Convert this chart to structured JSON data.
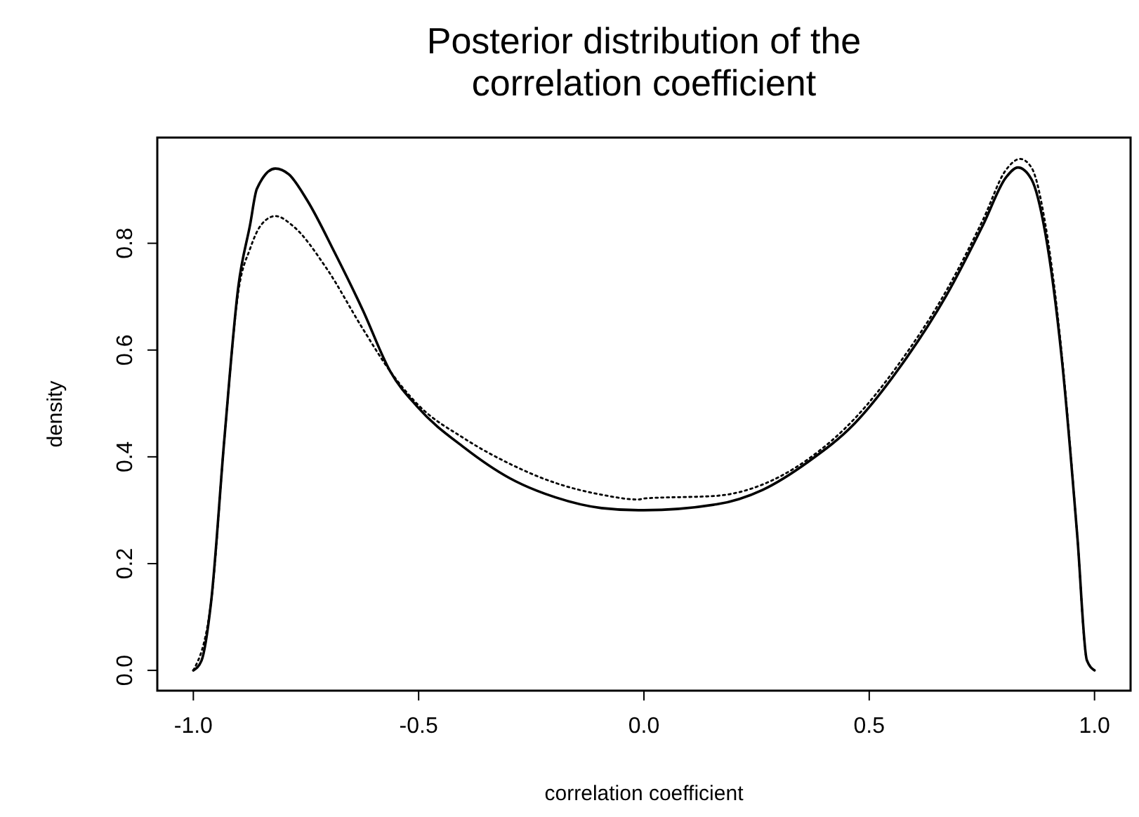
{
  "chart_data": {
    "type": "line",
    "title": "Posterior distribution of the correlation coefficient",
    "xlabel": "correlation coefficient",
    "ylabel": "density",
    "xlim": [
      -1.08,
      1.08
    ],
    "ylim": [
      -0.038,
      0.998
    ],
    "xticks": [
      {
        "value": -1,
        "label": "-1.0"
      },
      {
        "value": -0.5,
        "label": "-0.5"
      },
      {
        "value": 0,
        "label": "0.0"
      },
      {
        "value": 0.5,
        "label": "0.5"
      },
      {
        "value": 1,
        "label": "1.0"
      }
    ],
    "yticks": [
      {
        "value": 0,
        "label": "0.0"
      },
      {
        "value": 0.2,
        "label": "0.2"
      },
      {
        "value": 0.4,
        "label": "0.4"
      },
      {
        "value": 0.6,
        "label": "0.6"
      },
      {
        "value": 0.8,
        "label": "0.8"
      }
    ],
    "grid": false,
    "series": [
      {
        "color": "#000000",
        "line_style": "solid",
        "x": [
          -1.0,
          -0.982,
          -0.961,
          -0.931,
          -0.9,
          -0.874,
          -0.859,
          -0.818,
          -0.788,
          -0.747,
          -0.686,
          -0.624,
          -0.563,
          -0.502,
          -0.4,
          -0.298,
          -0.196,
          -0.094,
          -0.012,
          0.0,
          0.161,
          0.263,
          0.365,
          0.467,
          0.569,
          0.671,
          0.753,
          0.804,
          0.83,
          0.86,
          0.891,
          0.927,
          0.962,
          0.983,
          1.0
        ],
        "values": [
          0.0,
          0.018,
          0.125,
          0.435,
          0.72,
          0.835,
          0.902,
          0.94,
          0.929,
          0.88,
          0.782,
          0.675,
          0.56,
          0.493,
          0.418,
          0.36,
          0.324,
          0.304,
          0.3,
          0.3,
          0.311,
          0.338,
          0.391,
          0.462,
          0.569,
          0.702,
          0.835,
          0.924,
          0.942,
          0.92,
          0.818,
          0.587,
          0.249,
          0.019,
          0.0
        ]
      },
      {
        "color": "#000000",
        "line_style": "dotted",
        "x": [
          -1.0,
          -0.961,
          -0.931,
          -0.9,
          -0.874,
          -0.849,
          -0.818,
          -0.777,
          -0.706,
          -0.624,
          -0.563,
          -0.502,
          -0.4,
          -0.298,
          -0.196,
          -0.094,
          -0.012,
          0.0,
          0.161,
          0.263,
          0.365,
          0.467,
          0.569,
          0.671,
          0.753,
          0.804,
          0.835,
          0.86,
          0.891,
          0.927,
          0.962,
          0.983,
          1.0
        ],
        "values": [
          0.0,
          0.125,
          0.435,
          0.71,
          0.79,
          0.835,
          0.851,
          0.831,
          0.755,
          0.64,
          0.56,
          0.498,
          0.435,
          0.387,
          0.351,
          0.329,
          0.32,
          0.322,
          0.327,
          0.348,
          0.396,
          0.471,
          0.578,
          0.711,
          0.845,
          0.938,
          0.958,
          0.942,
          0.835,
          0.595,
          0.249,
          0.019,
          0.0
        ]
      }
    ]
  }
}
